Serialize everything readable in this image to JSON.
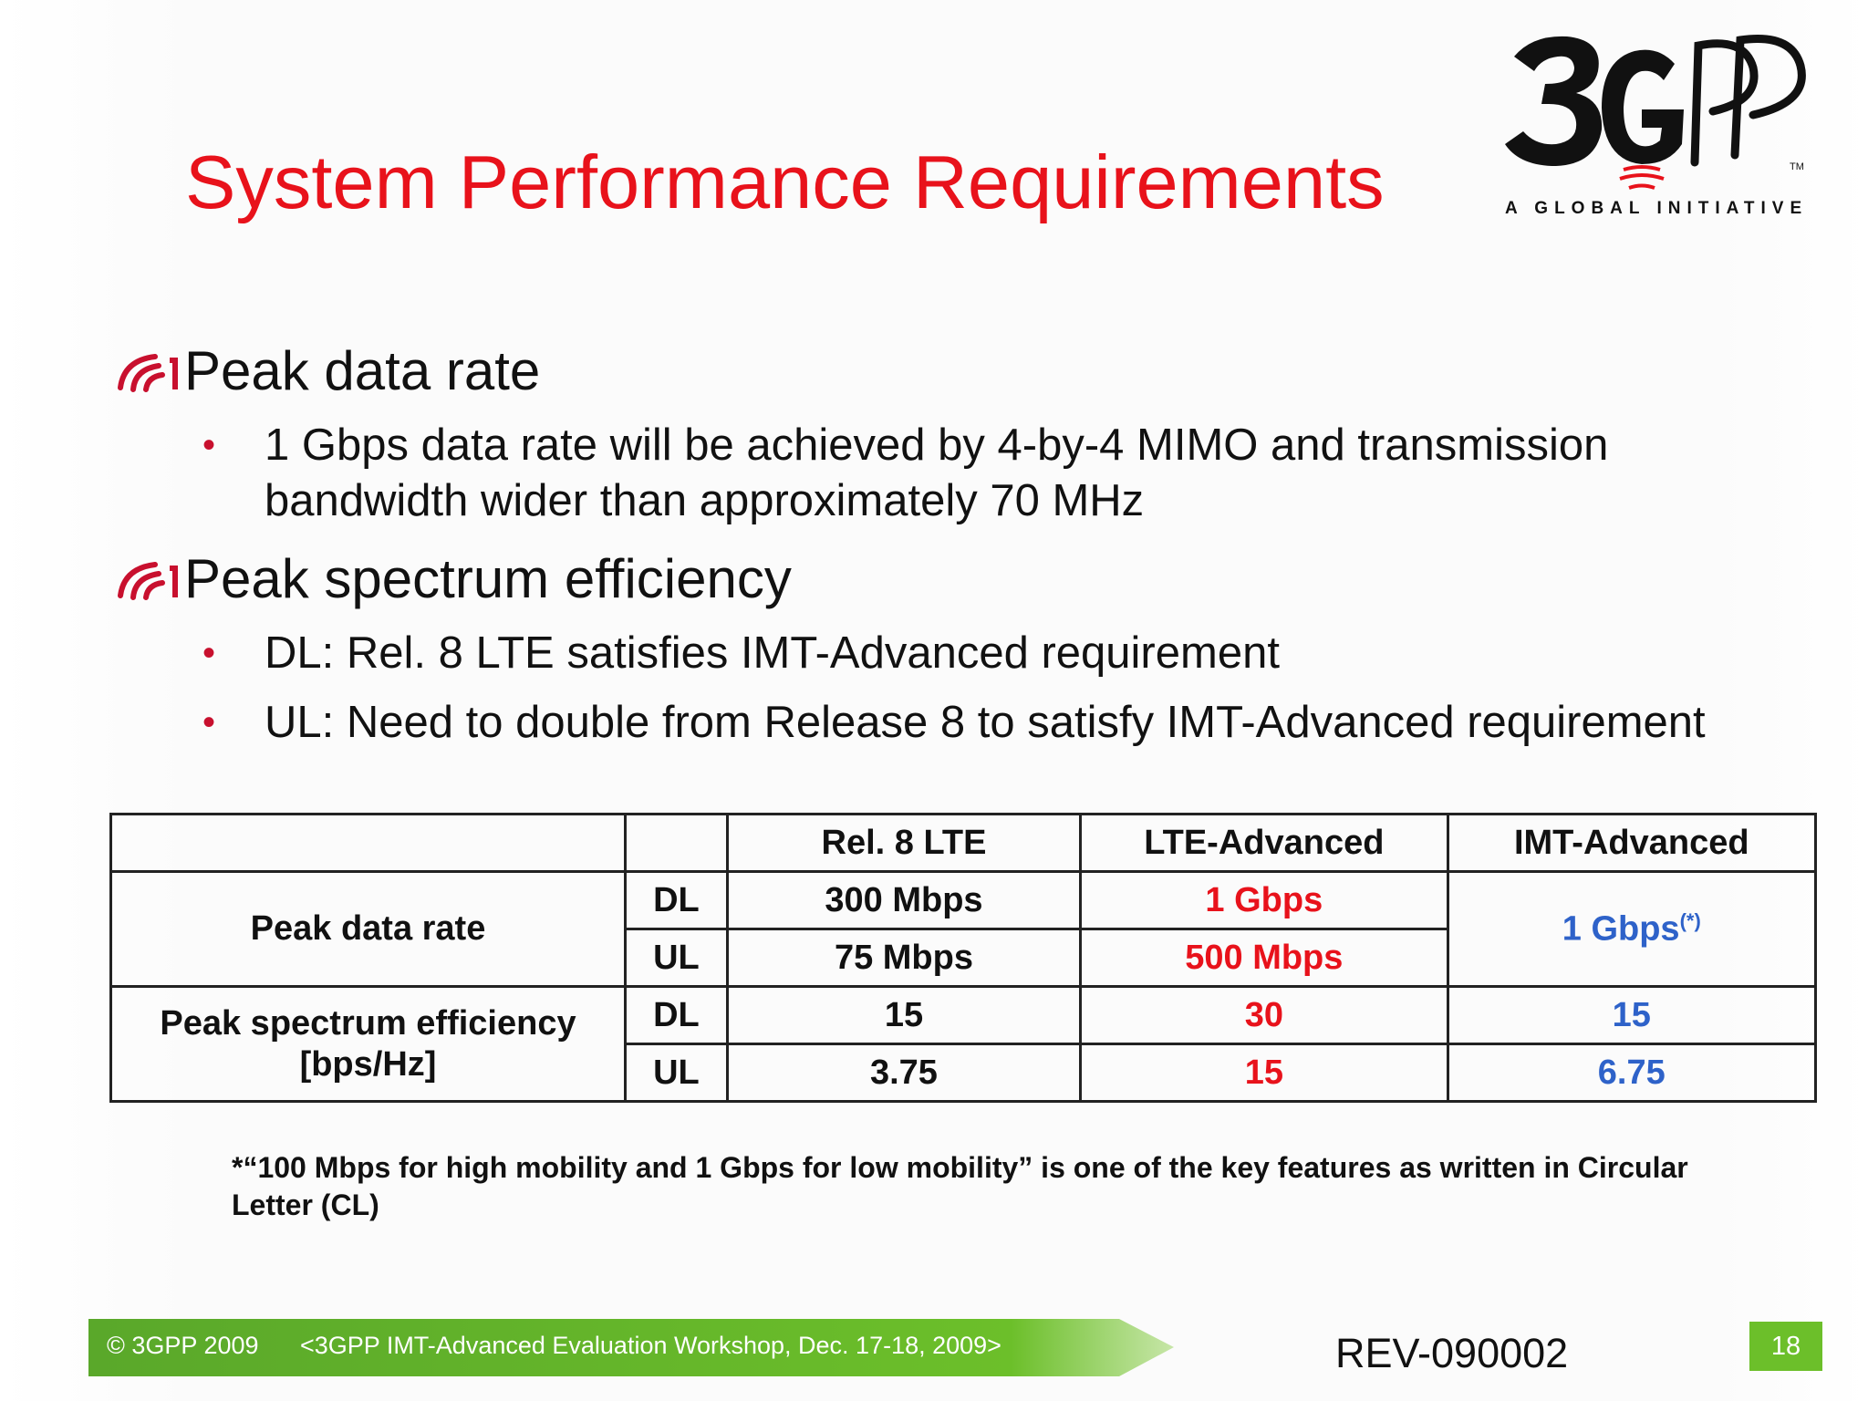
{
  "slide": {
    "title": "System Performance Requirements",
    "logo": {
      "wordmark": "3GPP",
      "trademark": "TM",
      "tagline": "A GLOBAL INITIATIVE"
    },
    "bullets": [
      {
        "heading": "Peak data rate",
        "subs": [
          "1 Gbps data rate will be achieved by 4-by-4 MIMO and transmission bandwidth wider than approximately 70 MHz"
        ]
      },
      {
        "heading": "Peak spectrum efficiency",
        "subs": [
          "DL: Rel. 8 LTE satisfies IMT-Advanced requirement",
          "UL: Need to double from Release 8 to satisfy IMT-Advanced requirement"
        ]
      }
    ],
    "table": {
      "headers": [
        "",
        "",
        "Rel. 8 LTE",
        "LTE-Advanced",
        "IMT-Advanced"
      ],
      "peak_rate": {
        "label": "Peak data rate",
        "dl": {
          "link": "DL",
          "rel8": "300 Mbps",
          "lte_adv": "1 Gbps"
        },
        "ul": {
          "link": "UL",
          "rel8": "75 Mbps",
          "lte_adv": "500 Mbps"
        },
        "imt_adv": "1 Gbps",
        "imt_adv_note": "(*)"
      },
      "spectrum": {
        "label_line1": "Peak spectrum efficiency",
        "label_line2": "[bps/Hz]",
        "dl": {
          "link": "DL",
          "rel8": "15",
          "lte_adv": "30",
          "imt_adv": "15"
        },
        "ul": {
          "link": "UL",
          "rel8": "3.75",
          "lte_adv": "15",
          "imt_adv": "6.75"
        }
      }
    },
    "footnote": "*“100 Mbps for high mobility and 1 Gbps for low mobility” is one of the key features as written in Circular Letter (CL)",
    "footer": {
      "copyright": "© 3GPP 2009",
      "event": "<3GPP IMT-Advanced Evaluation Workshop, Dec. 17-18, 2009>",
      "doc_id": "REV-090002",
      "page": "18"
    },
    "colors": {
      "title": "#e8121b",
      "highlight_red": "#e8121b",
      "highlight_blue": "#2e62c9",
      "footer_green": "#5fae2b"
    },
    "icons": {
      "bullet": "red-wave-icon"
    }
  }
}
